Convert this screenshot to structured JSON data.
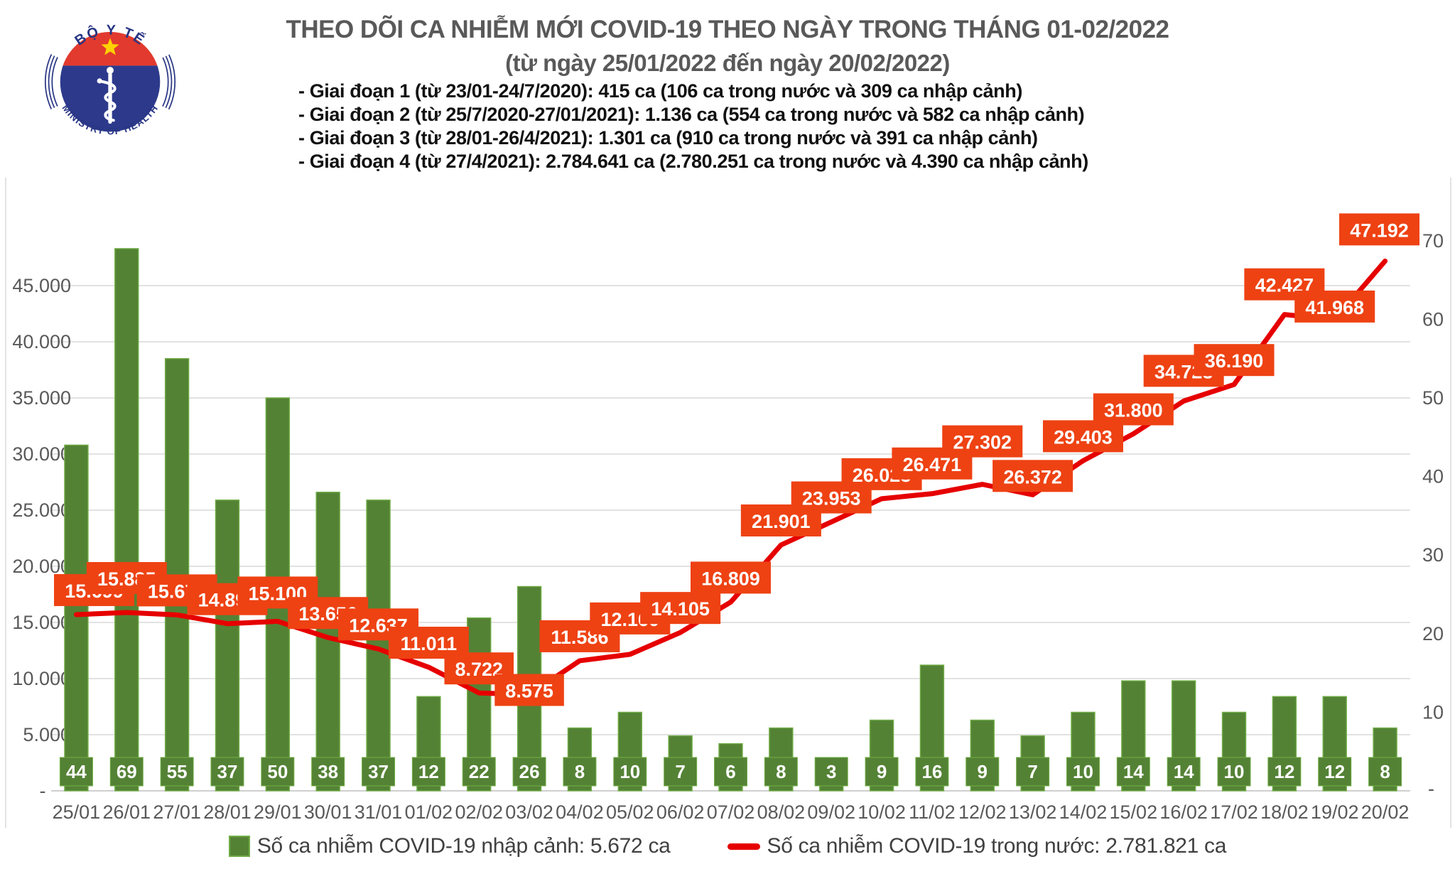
{
  "logo": {
    "top_text": "BỘ Y TẾ",
    "bottom_text": "MINISTRY OF HEALTH"
  },
  "header": {
    "title": "THEO DÕI CA NHIỄM MỚI COVID-19 THEO NGÀY TRONG THÁNG 01-02/2022",
    "subtitle": "(từ ngày 25/01/2022 đến ngày 20/02/2022)"
  },
  "annotations": [
    "- Giai đoạn 1 (từ 23/01-24/7/2020): 415 ca (106 ca trong nước và 309 ca nhập cảnh)",
    "- Giai đoạn 2 (từ 25/7/2020-27/01/2021): 1.136 ca (554 ca trong nước và 582 ca nhập cảnh)",
    "- Giai đoạn 3 (từ 28/01-26/4/2021): 1.301 ca (910 ca trong nước và 391 ca nhập cảnh)",
    "- Giai đoạn 4 (từ 27/4/2021): 2.784.641 ca (2.780.251 ca trong nước và 4.390 ca nhập cảnh)"
  ],
  "chart_data": {
    "type": "combo",
    "categories": [
      "25/01",
      "26/01",
      "27/01",
      "28/01",
      "29/01",
      "30/01",
      "31/01",
      "01/02",
      "02/02",
      "03/02",
      "04/02",
      "05/02",
      "06/02",
      "07/02",
      "08/02",
      "09/02",
      "10/02",
      "11/02",
      "12/02",
      "13/02",
      "14/02",
      "15/02",
      "16/02",
      "17/02",
      "18/02",
      "19/02",
      "20/02"
    ],
    "series": [
      {
        "name": "Số ca nhiễm COVID-19 nhập cảnh",
        "type": "bar",
        "axis": "right",
        "values": [
          44,
          69,
          55,
          37,
          50,
          38,
          37,
          12,
          22,
          26,
          8,
          10,
          7,
          6,
          8,
          3,
          9,
          16,
          9,
          7,
          10,
          14,
          14,
          10,
          12,
          12,
          8
        ]
      },
      {
        "name": "Số ca nhiễm COVID-19 trong nước",
        "type": "line",
        "axis": "left",
        "values": [
          15699,
          15885,
          15672,
          14892,
          15100,
          13656,
          12637,
          11011,
          8722,
          8575,
          11586,
          12160,
          14105,
          16809,
          21901,
          23953,
          26023,
          26471,
          27302,
          26372,
          29403,
          31800,
          34723,
          36190,
          42427,
          41968,
          47192
        ]
      }
    ],
    "left_axis": {
      "tick_values": [
        45000,
        40000,
        35000,
        30000,
        25000,
        20000,
        15000,
        10000,
        5000
      ],
      "zero_label": "-",
      "range": [
        0,
        50000
      ],
      "grid": true
    },
    "right_axis": {
      "tick_values": [
        70,
        60,
        50,
        40,
        30,
        20,
        10
      ],
      "zero_label": "-",
      "range": [
        0,
        70.9
      ],
      "grid": false
    },
    "colors": {
      "bar_fill": "#548235",
      "bar_border": "#70ad47",
      "bar_label_text": "#ffffff",
      "line": "#e60000",
      "line_label_bg": "#ee4213",
      "line_label_text": "#ffffff",
      "axis_text": "#595959",
      "grid": "#d9d9d9",
      "axis_line": "#bfbfbf"
    },
    "legend_position": "bottom"
  },
  "legend": [
    {
      "label": "Số ca nhiễm COVID-19 nhập cảnh: 5.672 ca",
      "swatch": "green-square"
    },
    {
      "label": "Số ca nhiễm COVID-19 trong nước: 2.781.821 ca",
      "swatch": "red-line"
    }
  ]
}
